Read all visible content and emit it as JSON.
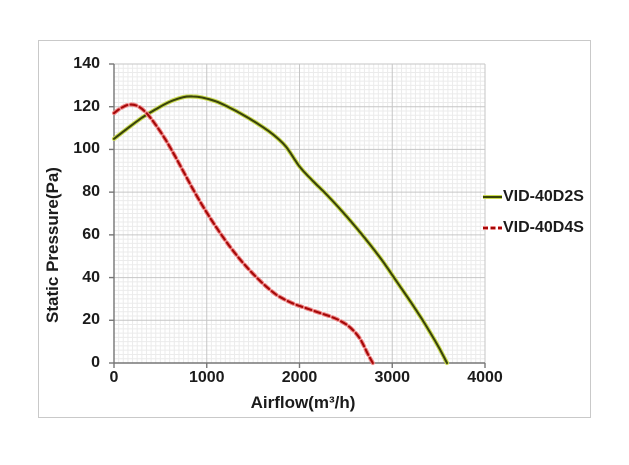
{
  "chart_data": {
    "type": "line",
    "title": "",
    "xlabel": "Airflow(m³/h)",
    "ylabel": "Static Pressure(Pa)",
    "xlim": [
      0,
      4000
    ],
    "ylim": [
      0,
      140
    ],
    "x_tick_values": [
      0,
      1000,
      2000,
      3000,
      4000
    ],
    "x_tick_labels": [
      "0",
      "1000",
      "2000",
      "3000",
      "4000"
    ],
    "y_tick_values": [
      0,
      20,
      40,
      60,
      80,
      100,
      120,
      140
    ],
    "y_tick_labels": [
      "0",
      "20",
      "40",
      "60",
      "80",
      "100",
      "120",
      "140"
    ],
    "x_minor_step": 50,
    "y_minor_step": 2,
    "grid": "major+minor",
    "legend_position": "right-outside",
    "series": [
      {
        "name": "VID-40D2S",
        "line_style": "solid",
        "color": "#39430a",
        "halo_color": "#c9d94e",
        "points": [
          [
            0,
            105
          ],
          [
            150,
            110
          ],
          [
            300,
            114.8
          ],
          [
            450,
            118.8
          ],
          [
            600,
            122.3
          ],
          [
            750,
            124.5
          ],
          [
            850,
            124.8
          ],
          [
            950,
            124.3
          ],
          [
            1100,
            122.5
          ],
          [
            1250,
            119.5
          ],
          [
            1400,
            116
          ],
          [
            1550,
            112
          ],
          [
            1700,
            107.5
          ],
          [
            1850,
            101.5
          ],
          [
            2000,
            92
          ],
          [
            2150,
            85
          ],
          [
            2300,
            78.5
          ],
          [
            2450,
            71.5
          ],
          [
            2600,
            64
          ],
          [
            2750,
            56
          ],
          [
            2900,
            47.5
          ],
          [
            3050,
            38
          ],
          [
            3200,
            28.5
          ],
          [
            3350,
            18.5
          ],
          [
            3500,
            7.5
          ],
          [
            3590,
            0
          ]
        ]
      },
      {
        "name": "VID-40D4S",
        "line_style": "dashed",
        "color": "#a50808",
        "halo_color": "#ee8585",
        "points": [
          [
            0,
            117
          ],
          [
            80,
            119.5
          ],
          [
            170,
            121
          ],
          [
            260,
            120.2
          ],
          [
            350,
            117
          ],
          [
            450,
            111.5
          ],
          [
            550,
            105
          ],
          [
            650,
            97.5
          ],
          [
            750,
            89.5
          ],
          [
            850,
            81.5
          ],
          [
            950,
            74
          ],
          [
            1050,
            67
          ],
          [
            1150,
            60.5
          ],
          [
            1250,
            54.5
          ],
          [
            1350,
            49
          ],
          [
            1450,
            44
          ],
          [
            1550,
            39.5
          ],
          [
            1650,
            35.5
          ],
          [
            1750,
            32
          ],
          [
            1850,
            29.5
          ],
          [
            1950,
            27.5
          ],
          [
            2050,
            26
          ],
          [
            2150,
            24.5
          ],
          [
            2250,
            23
          ],
          [
            2350,
            21.5
          ],
          [
            2450,
            19.5
          ],
          [
            2550,
            16.5
          ],
          [
            2650,
            11.5
          ],
          [
            2740,
            4
          ],
          [
            2790,
            0
          ]
        ]
      }
    ],
    "colors": {
      "grid_major": "#c6c6c6",
      "grid_minor": "#ebebeb",
      "axis": "#767676",
      "text": "#1b1b1b",
      "background": "#ffffff",
      "border": "#c9c9c9"
    }
  }
}
